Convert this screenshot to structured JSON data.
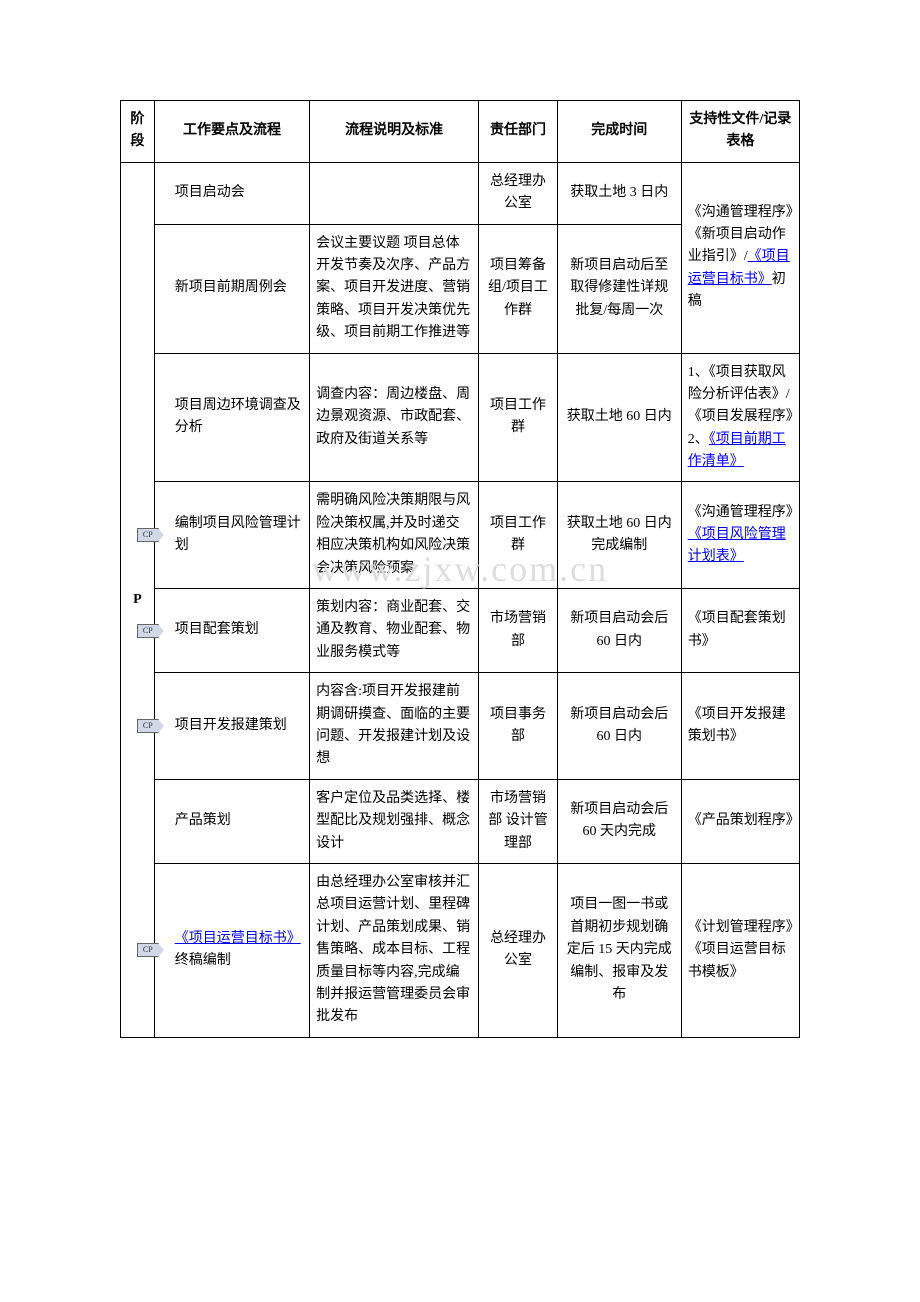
{
  "watermark_text": "www.zjxw.com.cn",
  "watermark_color": "#dddddd",
  "table": {
    "headers": {
      "phase": "阶段",
      "task": "工作要点及流程",
      "desc": "流程说明及标准",
      "dept": "责任部门",
      "time": "完成时间",
      "doc": "支持性文件/记录表格"
    },
    "phase_label": "P",
    "rows": [
      {
        "cp": false,
        "task": "项目启动会",
        "desc": "",
        "dept": "总经理办公室",
        "time": "获取土地 3 日内",
        "doc_rowspan": 2,
        "doc_parts": [
          {
            "text": "《沟通管理程序》",
            "link": false
          },
          {
            "text": "《新项目启动作业指引》/",
            "link": false
          },
          {
            "text": "《项目运营目标书》",
            "link": true
          },
          {
            "text": "初稿",
            "link": false
          }
        ]
      },
      {
        "cp": false,
        "task": "新项目前期周例会",
        "desc": "会议主要议题 项目总体开发节奏及次序、产品方案、项目开发进度、营销策略、项目开发决策优先级、项目前期工作推进等",
        "dept": "项目筹备组/项目工作群",
        "time": "新项目启动后至取得修建性详规批复/每周一次",
        "doc_skip": true
      },
      {
        "cp": false,
        "task": "项目周边环境调查及分析",
        "desc": "调查内容：周边楼盘、周边景观资源、市政配套、政府及街道关系等",
        "dept": "项目工作群",
        "time": "获取土地 60 日内",
        "doc_parts": [
          {
            "text": "1、《项目获取风险分析评估表》/《项目发展程序》",
            "link": false
          },
          {
            "text": "2、",
            "link": false
          },
          {
            "text": "《项目前期工作清单》",
            "link": true
          }
        ]
      },
      {
        "cp": true,
        "task": "编制项目风险管理计划",
        "desc": "需明确风险决策期限与风险决策权属,并及时递交相应决策机构如风险决策会决策风险预案",
        "dept": "项目工作群",
        "time": "获取土地 60 日内完成编制",
        "doc_parts": [
          {
            "text": "《沟通管理程序》",
            "link": false
          },
          {
            "text": "《项目风险管理计划表》",
            "link": true
          }
        ]
      },
      {
        "cp": true,
        "task": "项目配套策划",
        "desc": "策划内容：商业配套、交通及教育、物业配套、物业服务模式等",
        "dept": "市场营销部",
        "time": "新项目启动会后 60 日内",
        "doc_parts": [
          {
            "text": "《项目配套策划书》",
            "link": false
          }
        ]
      },
      {
        "cp": true,
        "task": "项目开发报建策划",
        "desc": "内容含:项目开发报建前期调研摸查、面临的主要问题、开发报建计划及设想",
        "dept": "项目事务部",
        "time": "新项目启动会后 60 日内",
        "doc_parts": [
          {
            "text": "《项目开发报建策划书》",
            "link": false
          }
        ]
      },
      {
        "cp": false,
        "task": "产品策划",
        "desc": "客户定位及品类选择、楼型配比及规划强排、概念设计",
        "dept": "市场营销部 设计管理部",
        "time": "新项目启动会后 60 天内完成",
        "doc_parts": [
          {
            "text": "《产品策划程序》",
            "link": false
          }
        ]
      },
      {
        "cp": true,
        "task_parts": [
          {
            "text": "《项目运营目标书》",
            "link": true
          },
          {
            "text": "终稿编制",
            "link": false
          }
        ],
        "desc": "由总经理办公室审核并汇总项目运营计划、里程碑计划、产品策划成果、销售策略、成本目标、工程质量目标等内容,完成编制并报运营管理委员会审批发布",
        "dept": "总经理办公室",
        "time": "项目一图一书或首期初步规划确定后 15 天内完成编制、报审及发布",
        "doc_parts": [
          {
            "text": "《计划管理程序》",
            "link": false
          },
          {
            "text": "《项目运营目标书模板》",
            "link": false
          }
        ]
      }
    ]
  }
}
